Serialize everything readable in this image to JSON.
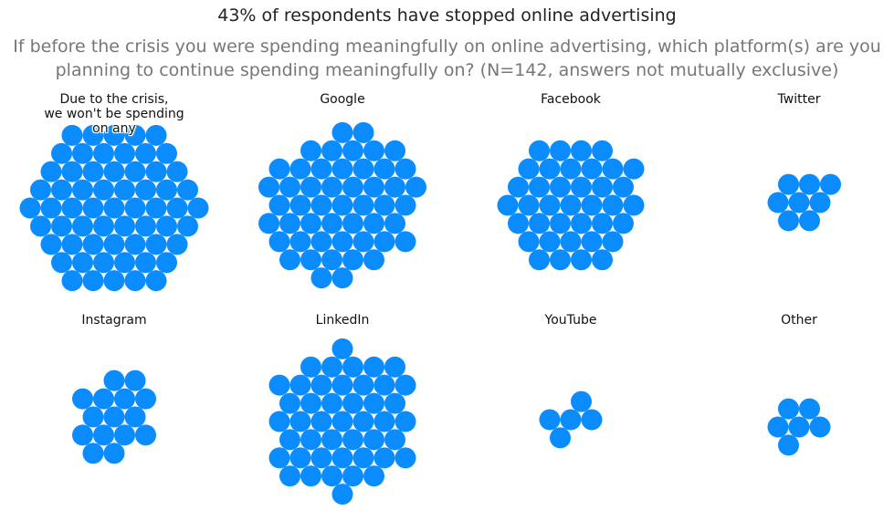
{
  "title": "43% of respondents have stopped online advertising",
  "subtitle_line1": "If before the crisis you were spending meaningfully on online advertising, which platform(s) are you",
  "subtitle_line2": "planning to continue spending meaningfully on? (N=142, answers not mutually exclusive)",
  "colors": {
    "dot": "#0a8cff"
  },
  "chart_data": {
    "type": "dot-cluster",
    "title": "43% of respondents have stopped online advertising",
    "total_respondents": 142,
    "groups": [
      {
        "label_lines": [
          "Due to the crisis,",
          "we won't be spending",
          "on any"
        ],
        "count": 61
      },
      {
        "label_lines": [
          "Google"
        ],
        "count": 50
      },
      {
        "label_lines": [
          "Facebook"
        ],
        "count": 38
      },
      {
        "label_lines": [
          "Twitter"
        ],
        "count": 8
      },
      {
        "label_lines": [
          "Instagram"
        ],
        "count": 15
      },
      {
        "label_lines": [
          "LinkedIn"
        ],
        "count": 45
      },
      {
        "label_lines": [
          "YouTube"
        ],
        "count": 5
      },
      {
        "label_lines": [
          "Other"
        ],
        "count": 6
      }
    ]
  }
}
